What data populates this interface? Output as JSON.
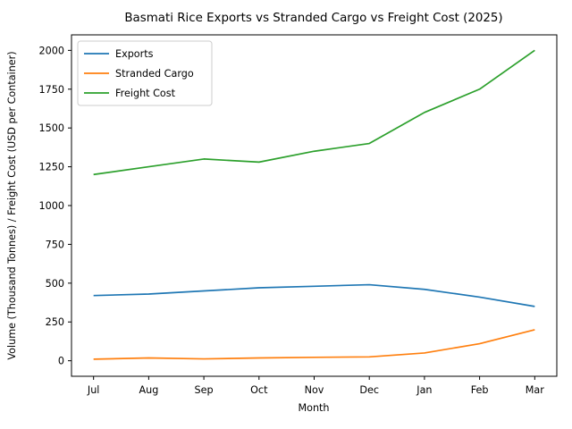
{
  "chart_data": {
    "type": "line",
    "title": "Basmati Rice Exports vs Stranded Cargo vs Freight Cost (2025)",
    "xlabel": "Month",
    "ylabel": "Volume (Thousand Tonnes) / Freight Cost (USD per Container)",
    "categories": [
      "Jul",
      "Aug",
      "Sep",
      "Oct",
      "Nov",
      "Dec",
      "Jan",
      "Feb",
      "Mar"
    ],
    "series": [
      {
        "name": "Exports",
        "color": "#1f77b4",
        "values": [
          420,
          430,
          450,
          470,
          480,
          490,
          460,
          410,
          350
        ]
      },
      {
        "name": "Stranded Cargo",
        "color": "#ff7f0e",
        "values": [
          10,
          18,
          12,
          18,
          22,
          25,
          50,
          110,
          200
        ]
      },
      {
        "name": "Freight Cost",
        "color": "#2ca02c",
        "values": [
          1200,
          1250,
          1300,
          1280,
          1350,
          1400,
          1600,
          1750,
          2000
        ]
      }
    ],
    "y_ticks": [
      0,
      250,
      500,
      750,
      1000,
      1250,
      1500,
      1750,
      2000
    ],
    "ylim": [
      -100,
      2100
    ],
    "grid": false,
    "legend_position": "upper left",
    "axis_color": "#000000",
    "legend_border_color": "#cccccc",
    "background_color": "#ffffff"
  }
}
